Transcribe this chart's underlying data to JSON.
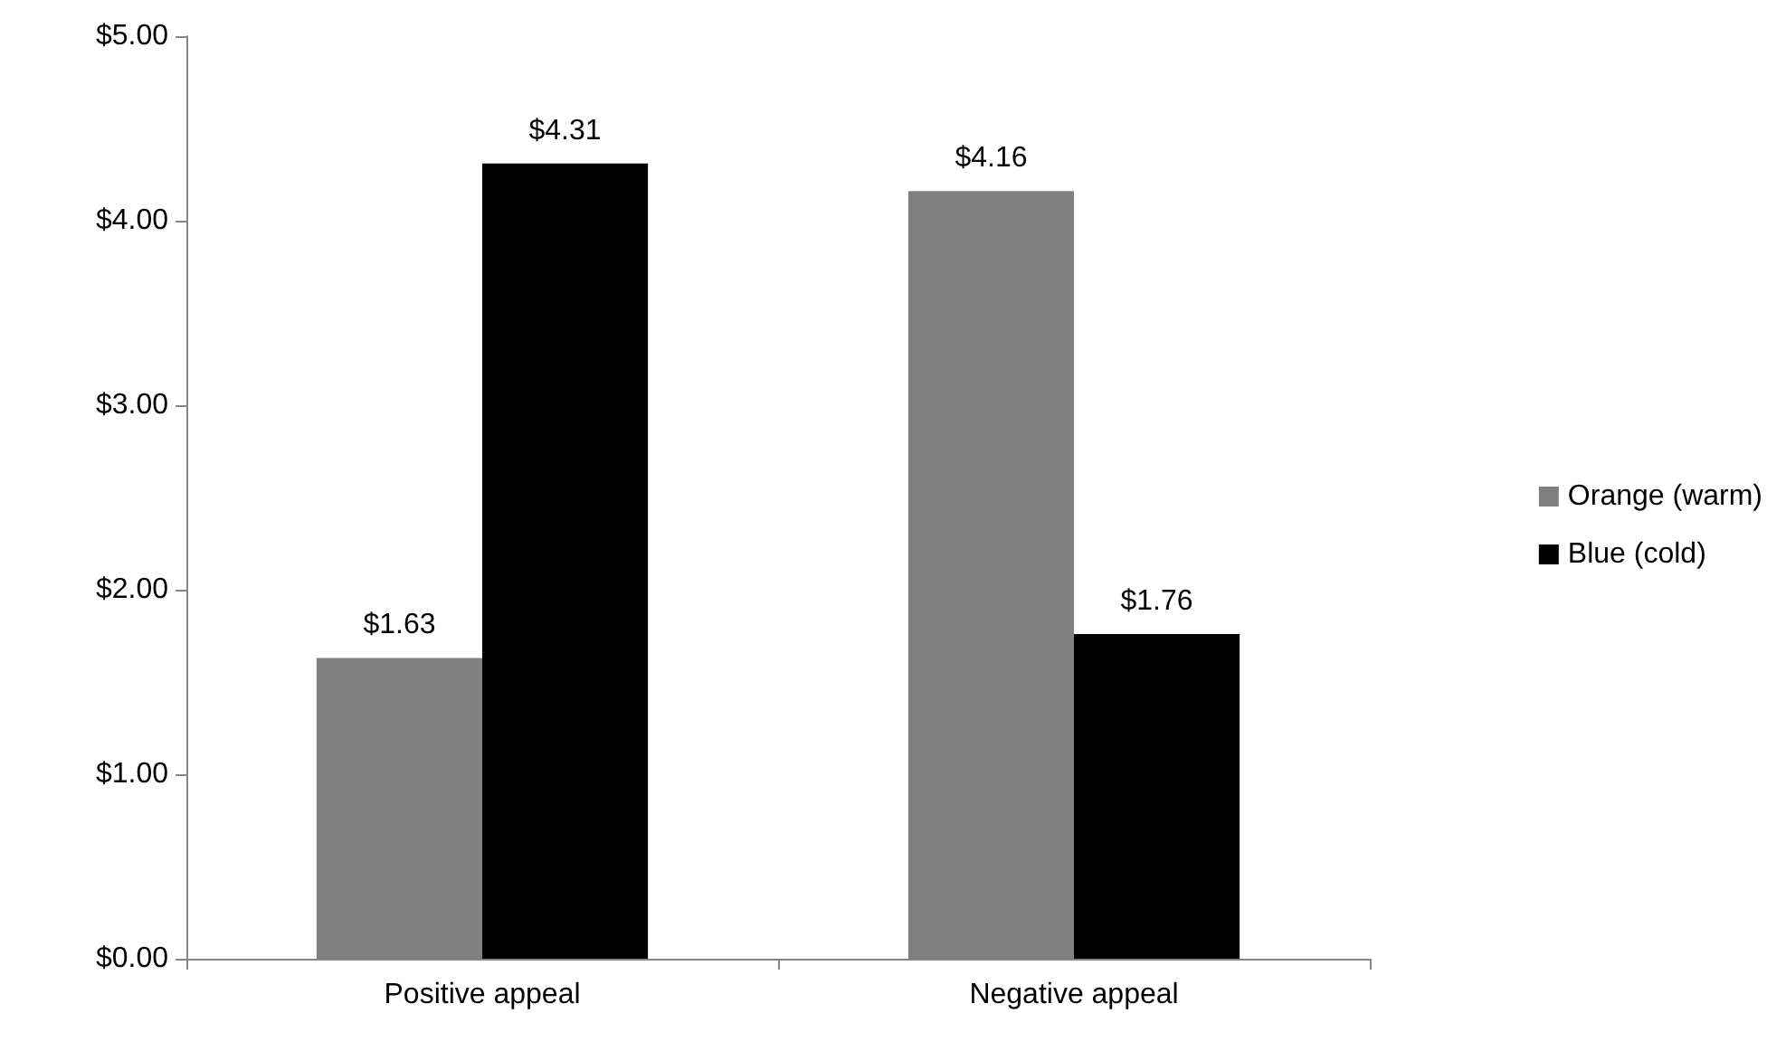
{
  "chart_data": {
    "type": "bar",
    "categories": [
      "Positive appeal",
      "Negative appeal"
    ],
    "series": [
      {
        "name": "Orange (warm)",
        "color": "#808080",
        "values": [
          1.63,
          4.16
        ],
        "value_labels": [
          "$1.63",
          "$4.16"
        ]
      },
      {
        "name": "Blue (cold)",
        "color": "#000000",
        "values": [
          4.31,
          1.76
        ],
        "value_labels": [
          "$4.31",
          "$1.76"
        ]
      }
    ],
    "ylim": [
      0,
      5
    ],
    "yticks": [
      {
        "value": 0,
        "label": "$0.00"
      },
      {
        "value": 1,
        "label": "$1.00"
      },
      {
        "value": 2,
        "label": "$2.00"
      },
      {
        "value": 3,
        "label": "$3.00"
      },
      {
        "value": 4,
        "label": "$4.00"
      },
      {
        "value": 5,
        "label": "$5.00"
      }
    ],
    "grid": false,
    "legend": "right"
  }
}
